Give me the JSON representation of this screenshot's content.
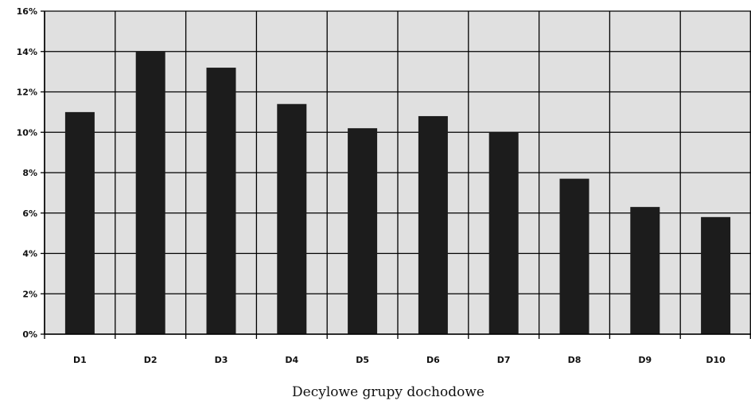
{
  "chart_data": {
    "type": "bar",
    "title": "",
    "xlabel": "Decylowe grupy dochodowe",
    "ylabel": "",
    "categories": [
      "D1",
      "D2",
      "D3",
      "D4",
      "D5",
      "D6",
      "D7",
      "D8",
      "D9",
      "D10"
    ],
    "values": [
      11.0,
      14.0,
      13.2,
      11.4,
      10.2,
      10.8,
      10.0,
      7.7,
      6.3,
      5.8
    ],
    "ylim": [
      0,
      16
    ],
    "yticks": [
      0,
      2,
      4,
      6,
      8,
      10,
      12,
      14,
      16
    ],
    "ytick_labels": [
      "0%",
      "2%",
      "4%",
      "6%",
      "8%",
      "10%",
      "12%",
      "14%",
      "16%"
    ],
    "grid": true,
    "legend": "none",
    "colors": {
      "plot_background": "#e0e0e0",
      "bar": "#1c1c1c",
      "grid": "#000000"
    }
  }
}
